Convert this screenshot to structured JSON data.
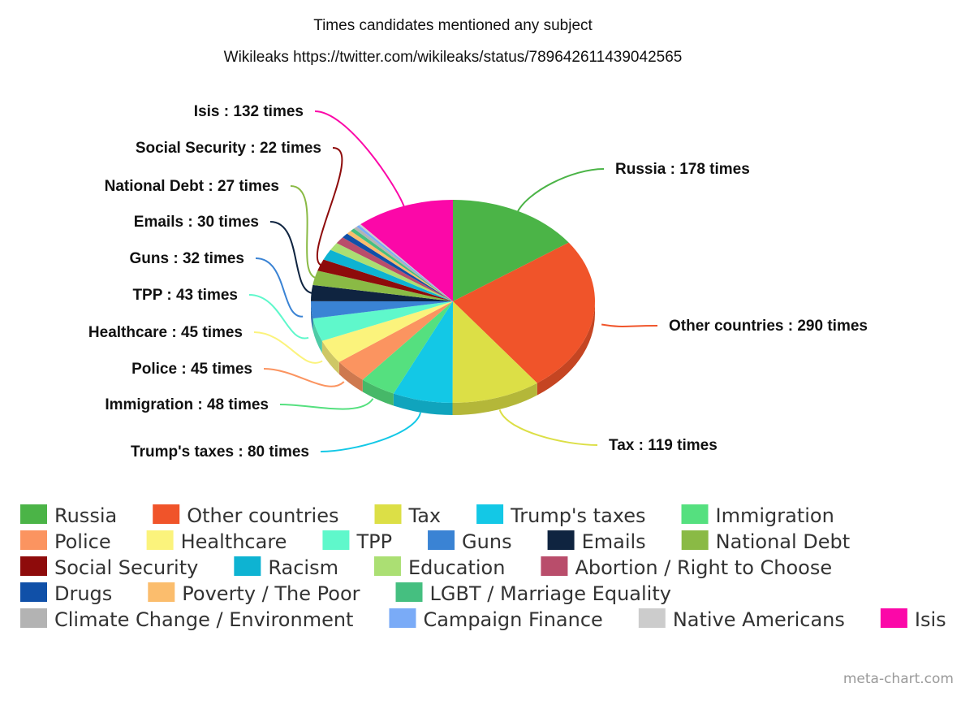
{
  "chart_data": {
    "type": "pie",
    "title": "Times candidates mentioned any subject",
    "subtitle": "Wikileaks https://twitter.com/wikileaks/status/789642611439042565",
    "label_format": "{name} : {value} times",
    "slices": [
      {
        "name": "Russia",
        "value": 178,
        "color": "#4bb447"
      },
      {
        "name": "Other countries",
        "value": 290,
        "color": "#f0542a"
      },
      {
        "name": "Tax",
        "value": 119,
        "color": "#dcdf46"
      },
      {
        "name": "Trump's taxes",
        "value": 80,
        "color": "#13c8e6"
      },
      {
        "name": "Immigration",
        "value": 48,
        "color": "#55e07f"
      },
      {
        "name": "Police",
        "value": 45,
        "color": "#fb9460"
      },
      {
        "name": "Healthcare",
        "value": 45,
        "color": "#fbf37c"
      },
      {
        "name": "TPP",
        "value": 43,
        "color": "#5ff8cb"
      },
      {
        "name": "Guns",
        "value": 32,
        "color": "#3a83d4"
      },
      {
        "name": "Emails",
        "value": 30,
        "color": "#0f2440"
      },
      {
        "name": "National Debt",
        "value": 27,
        "color": "#8aba45"
      },
      {
        "name": "Social Security",
        "value": 22,
        "color": "#8e0b0b"
      },
      {
        "name": "Racism",
        "value": 20,
        "color": "#0eb3d2"
      },
      {
        "name": "Education",
        "value": 15,
        "color": "#abdf73"
      },
      {
        "name": "Abortion / Right to Choose",
        "value": 13,
        "color": "#b94d6b"
      },
      {
        "name": "Drugs",
        "value": 9,
        "color": "#1050a8"
      },
      {
        "name": "Poverty / The Poor",
        "value": 7,
        "color": "#fbbd6d"
      },
      {
        "name": "LGBT / Marriage Equality",
        "value": 6,
        "color": "#45bf80"
      },
      {
        "name": "Climate Change / Environment",
        "value": 5,
        "color": "#b3b3b3"
      },
      {
        "name": "Campaign Finance",
        "value": 4,
        "color": "#7aabf7"
      },
      {
        "name": "Native Americans",
        "value": 3,
        "color": "#cccccc"
      },
      {
        "name": "Isis",
        "value": 132,
        "color": "#fb08a8"
      }
    ],
    "labeled_slices": [
      "Russia",
      "Other countries",
      "Tax",
      "Trump's taxes",
      "Immigration",
      "Police",
      "Healthcare",
      "TPP",
      "Guns",
      "Emails",
      "National Debt",
      "Social Security",
      "Isis"
    ],
    "legend_position": "bottom",
    "style": "3d"
  },
  "credit": "meta-chart.com"
}
